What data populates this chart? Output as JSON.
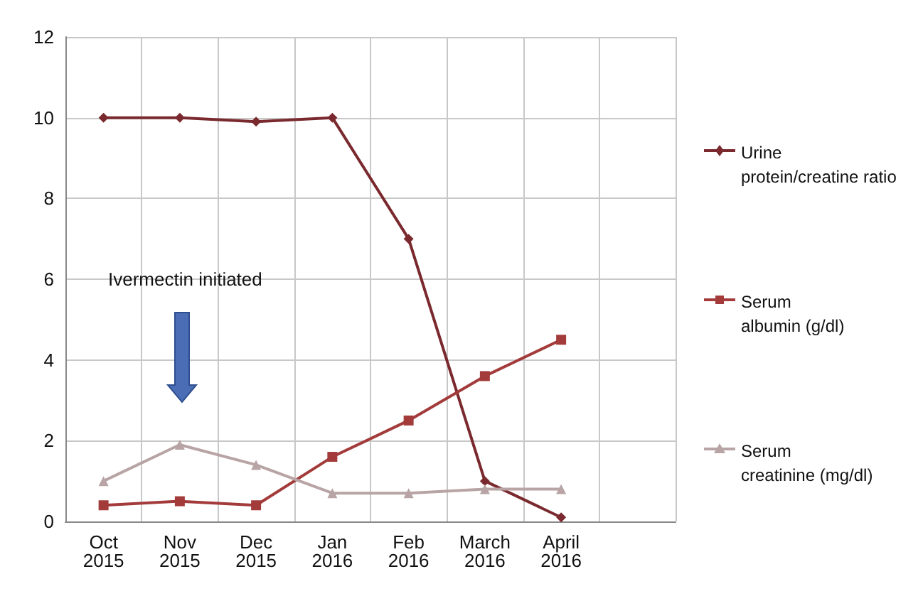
{
  "chart_data": {
    "type": "line",
    "categories": [
      "Oct 2015",
      "Nov 2015",
      "Dec 2015",
      "Jan 2016",
      "Feb 2016",
      "March 2016",
      "April 2016",
      null
    ],
    "series": [
      {
        "name": "Urine protein/creatine ratio",
        "color": "#7a2a2e",
        "marker": "diamond",
        "values": [
          10,
          10,
          9.9,
          10,
          7,
          1.0,
          0.1,
          null
        ]
      },
      {
        "name": "Serum albumin (g/dl)",
        "color": "#a33b3b",
        "marker": "square",
        "values": [
          0.4,
          0.5,
          0.4,
          1.6,
          2.5,
          3.6,
          4.5,
          null
        ]
      },
      {
        "name": "Serum creatinine (mg/dl)",
        "color": "#b8a4a4",
        "marker": "triangle",
        "values": [
          1.0,
          1.9,
          1.4,
          0.7,
          0.7,
          0.8,
          0.8,
          null
        ]
      }
    ],
    "ylim": [
      0,
      12
    ],
    "yticks": [
      0,
      2,
      4,
      6,
      8,
      10,
      12
    ],
    "grid": true,
    "legend": "right",
    "annotations": [
      "Ivermectin initiated"
    ]
  }
}
